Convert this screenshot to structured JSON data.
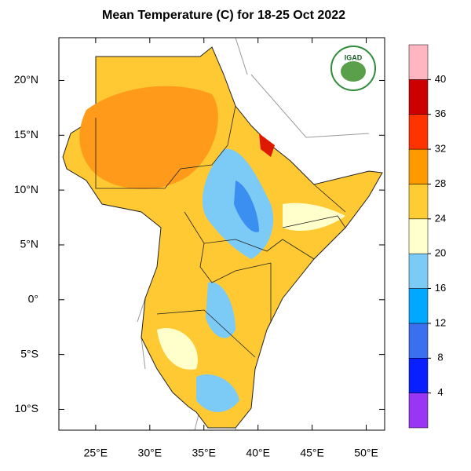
{
  "title": "Mean Temperature (C) for 18-25 Oct 2022",
  "logo": "IGAD",
  "map": {
    "xlim": [
      21.6,
      51.7
    ],
    "ylim": [
      -11.9,
      23.9
    ],
    "xticks": [
      {
        "value": 25,
        "label": "25°E"
      },
      {
        "value": 30,
        "label": "30°E"
      },
      {
        "value": 35,
        "label": "35°E"
      },
      {
        "value": 40,
        "label": "40°E"
      },
      {
        "value": 45,
        "label": "45°E"
      },
      {
        "value": 50,
        "label": "50°E"
      }
    ],
    "yticks": [
      {
        "value": 20,
        "label": "20°N"
      },
      {
        "value": 15,
        "label": "15°N"
      },
      {
        "value": 10,
        "label": "10°N"
      },
      {
        "value": 5,
        "label": "5°N"
      },
      {
        "value": 0,
        "label": "0°"
      },
      {
        "value": -5,
        "label": "5°S"
      },
      {
        "value": -10,
        "label": "10°S"
      }
    ]
  },
  "colorbar": {
    "levels": [
      4,
      8,
      12,
      16,
      20,
      24,
      28,
      32,
      36,
      40
    ],
    "colors": [
      "#9a35f5",
      "#0a1fff",
      "#3a6ff0",
      "#00a8ff",
      "#7ccbf7",
      "#ffffcc",
      "#ffcc33",
      "#ff9900",
      "#ff3300",
      "#cc0000",
      "#ffb6c1"
    ]
  }
}
